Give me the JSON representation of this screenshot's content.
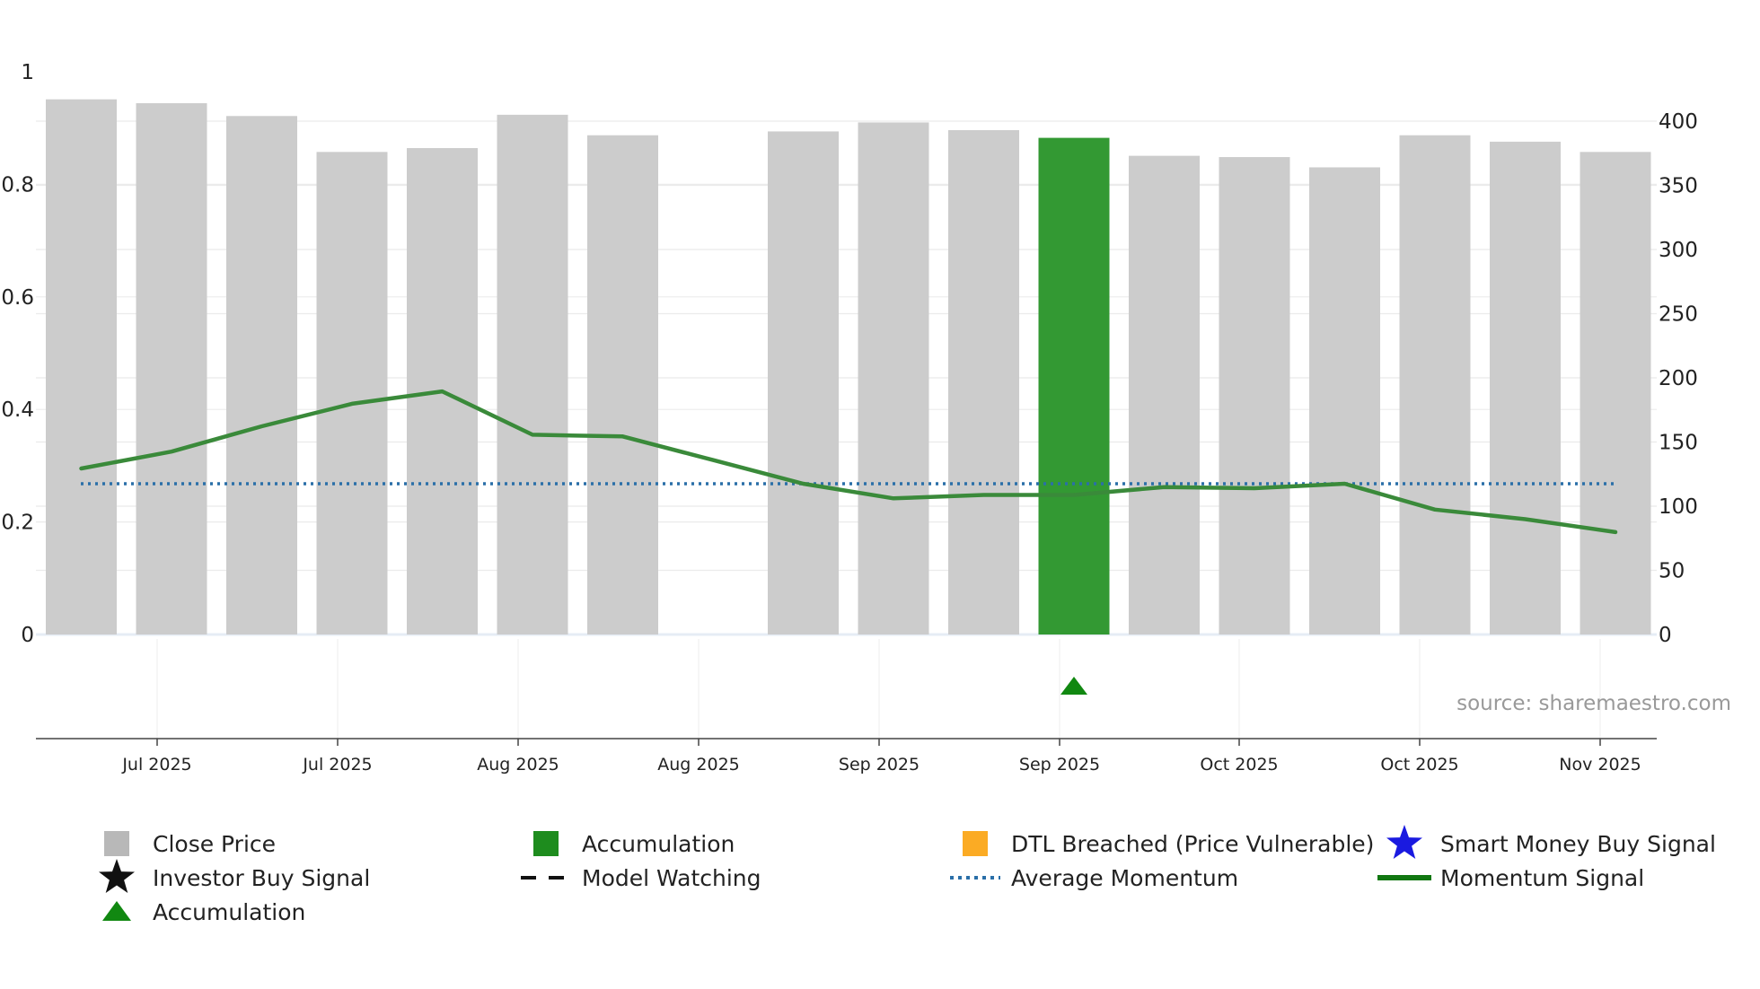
{
  "chart_data": {
    "type": "bar",
    "title": "",
    "source": "source: sharemaestro.com",
    "left_axis": {
      "ylim": [
        0,
        1
      ],
      "ticks": [
        0,
        0.2,
        0.4,
        0.6,
        0.8,
        1
      ],
      "tick_labels": [
        "0",
        "0.2",
        "0.4",
        "0.6",
        "0.8",
        "1"
      ]
    },
    "right_axis": {
      "ylim": [
        0,
        437
      ],
      "ticks": [
        0,
        50,
        100,
        150,
        200,
        250,
        300,
        350,
        400
      ],
      "tick_labels": [
        "0",
        "50",
        "100",
        "150",
        "200",
        "250",
        "300",
        "350",
        "400"
      ]
    },
    "x_tick_labels": [
      "Jul 2025",
      "Jul 2025",
      "Aug 2025",
      "Aug 2025",
      "Sep 2025",
      "Sep 2025",
      "Oct 2025",
      "Oct 2025",
      "Nov 2025"
    ],
    "grid": true,
    "colors": {
      "close_price": "#cccccc",
      "accumulation": "#339933",
      "momentum": "#3a8a3a",
      "average": "#2a6fa8",
      "marker": "#118811",
      "legend_close": "#b8b8b8",
      "legend_accum": "#1e8c1e",
      "legend_dtl": "#fbab24",
      "legend_smart": "#1a1ae0",
      "legend_investor": "#111111",
      "legend_watch": "#111111",
      "legend_avg": "#2a6fa8",
      "legend_mom": "#117711",
      "legend_tri": "#118811"
    },
    "series": [
      {
        "name": "Close Price",
        "axis": "right",
        "values": [
          417,
          414,
          404,
          376,
          379,
          405,
          389,
          null,
          392,
          399,
          393,
          387,
          373,
          372,
          364,
          389,
          384,
          376
        ],
        "highlight_index": 11
      },
      {
        "name": "Momentum Signal",
        "axis": "left",
        "values": [
          0.295,
          0.325,
          0.37,
          0.41,
          0.432,
          0.355,
          0.352,
          0.31,
          0.268,
          0.242,
          0.248,
          0.248,
          0.262,
          0.26,
          0.268,
          0.222,
          0.205,
          0.182
        ]
      },
      {
        "name": "Average Momentum",
        "axis": "left",
        "value": 0.268
      }
    ],
    "markers": [
      {
        "type": "accumulation-triangle",
        "index": 11
      }
    ],
    "legend": {
      "position": "bottom",
      "items": [
        {
          "label": "Close Price",
          "symbol": "square",
          "color_key": "legend_close"
        },
        {
          "label": "Accumulation",
          "symbol": "square",
          "color_key": "legend_accum"
        },
        {
          "label": "DTL Breached (Price Vulnerable)",
          "symbol": "square",
          "color_key": "legend_dtl"
        },
        {
          "label": "Smart Money Buy Signal",
          "symbol": "star",
          "color_key": "legend_smart"
        },
        {
          "label": "Investor Buy Signal",
          "symbol": "star",
          "color_key": "legend_investor"
        },
        {
          "label": "Model Watching",
          "symbol": "dash",
          "color_key": "legend_watch"
        },
        {
          "label": "Average Momentum",
          "symbol": "dot",
          "color_key": "legend_avg"
        },
        {
          "label": "Momentum Signal",
          "symbol": "line",
          "color_key": "legend_mom"
        },
        {
          "label": "Accumulation",
          "symbol": "triangle",
          "color_key": "legend_tri"
        }
      ]
    }
  }
}
